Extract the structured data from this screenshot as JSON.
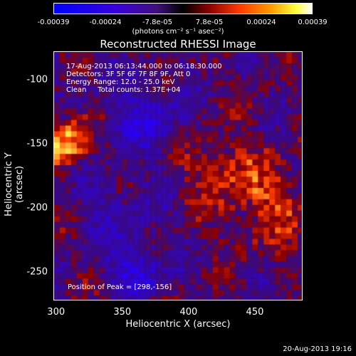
{
  "colorbar": {
    "ticks": [
      "-0.00039",
      "-0.00024",
      "-7.8e-05",
      "7.8e-05",
      "0.00024",
      "0.00039"
    ],
    "units_label": "(photons cm⁻² s⁻¹ asec⁻²)"
  },
  "title": "Reconstructed RHESSI Image",
  "info": {
    "time_range": "17-Aug-2013 06:13:44.000 to 06:18:30.000",
    "detectors": "Detectors: 3F 5F 6F 7F 8F 9F, Att 0",
    "energy": "Energy Range: 12.0 - 25.0 keV",
    "method": "Clean     Total counts: 1.37E+04"
  },
  "peak_label": "Position of Peak = [298,-156]",
  "axes": {
    "xlabel": "Heliocentric X (arcsec)",
    "ylabel": "Heliocentric Y (arcsec)",
    "xticks": [
      "300",
      "350",
      "400",
      "450"
    ],
    "yticks": [
      "-100",
      "-150",
      "-200",
      "-250"
    ],
    "x_tick_values": [
      300,
      350,
      400,
      450
    ],
    "y_tick_values": [
      -100,
      -150,
      -200,
      -250
    ],
    "xlim": [
      298,
      486
    ],
    "ylim": [
      -272,
      -78
    ]
  },
  "timestamp": "20-Aug-2013 19:16",
  "colors": {
    "background": "#000000",
    "foreground": "#ffffff",
    "negative_low": "#0000ff",
    "neutral": "#000000",
    "positive_high": "#ffffff"
  }
}
